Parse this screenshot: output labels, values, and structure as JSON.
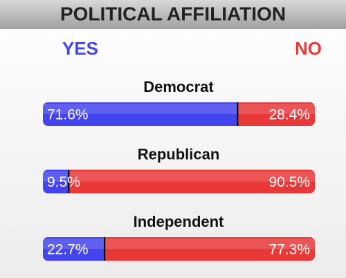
{
  "chart_data": {
    "type": "bar",
    "orientation": "horizontal",
    "stacked": true,
    "title": "POLITICAL AFFILIATION",
    "categories": [
      "Democrat",
      "Republican",
      "Independent"
    ],
    "series": [
      {
        "name": "YES",
        "color": "#4444ee",
        "values": [
          71.6,
          9.5,
          22.7
        ],
        "value_labels": [
          "71.6%",
          "9.5%",
          "22.7%"
        ]
      },
      {
        "name": "NO",
        "color": "#e83838",
        "values": [
          28.4,
          90.5,
          77.3
        ],
        "value_labels": [
          "28.4%",
          "90.5%",
          "77.3%"
        ]
      }
    ]
  }
}
